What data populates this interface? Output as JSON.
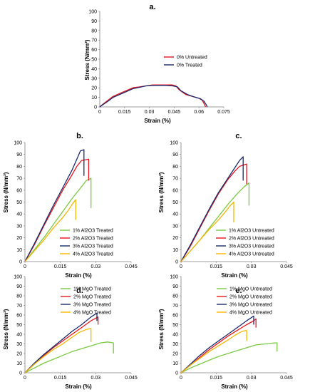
{
  "chart_data": [
    {
      "panel_label": "a.",
      "type": "line",
      "xlabel": "Strain (%)",
      "ylabel": "Stress (N/mm²)",
      "xlim": [
        0,
        0.075
      ],
      "ylim": [
        0,
        100
      ],
      "xticks": [
        "0",
        "0.015",
        "0.03",
        "0.045",
        "0.06",
        "0.075"
      ],
      "yticks": [
        "0",
        "10",
        "20",
        "30",
        "40",
        "50",
        "60",
        "70",
        "80",
        "90",
        "100"
      ],
      "legend_position": "center-right",
      "series": [
        {
          "name": "0% Untreated",
          "color": "#e8141c",
          "points": [
            [
              0,
              0
            ],
            [
              0.002,
              3
            ],
            [
              0.005,
              7
            ],
            [
              0.008,
              11
            ],
            [
              0.012,
              14
            ],
            [
              0.016,
              17
            ],
            [
              0.02,
              20
            ],
            [
              0.024,
              21
            ],
            [
              0.028,
              22
            ],
            [
              0.032,
              23
            ],
            [
              0.036,
              23
            ],
            [
              0.04,
              23
            ],
            [
              0.044,
              23
            ],
            [
              0.046,
              22
            ],
            [
              0.048,
              18
            ],
            [
              0.052,
              13
            ],
            [
              0.056,
              11
            ],
            [
              0.06,
              9
            ],
            [
              0.062,
              7
            ],
            [
              0.0635,
              2
            ],
            [
              0.064,
              0
            ]
          ]
        },
        {
          "name": "0% Treated",
          "color": "#1a2a6c",
          "points": [
            [
              0,
              0
            ],
            [
              0.002,
              2.5
            ],
            [
              0.005,
              6
            ],
            [
              0.008,
              10
            ],
            [
              0.012,
              13
            ],
            [
              0.016,
              16
            ],
            [
              0.02,
              19
            ],
            [
              0.024,
              20.5
            ],
            [
              0.028,
              22
            ],
            [
              0.032,
              22.5
            ],
            [
              0.036,
              22.5
            ],
            [
              0.04,
              22.5
            ],
            [
              0.044,
              22
            ],
            [
              0.047,
              21
            ],
            [
              0.049,
              17
            ],
            [
              0.053,
              13
            ],
            [
              0.057,
              10.5
            ],
            [
              0.061,
              8.5
            ],
            [
              0.063,
              6
            ],
            [
              0.0645,
              2
            ],
            [
              0.065,
              0
            ]
          ]
        }
      ]
    },
    {
      "panel_label": "b.",
      "type": "line",
      "xlabel": "Strain (%)",
      "ylabel": "Stress (N/mm²)",
      "xlim": [
        0,
        0.045
      ],
      "ylim": [
        0,
        100
      ],
      "xticks": [
        "0",
        "0.015",
        "0.03",
        "0.045"
      ],
      "yticks": [
        "0",
        "10",
        "20",
        "30",
        "40",
        "50",
        "60",
        "70",
        "80",
        "90",
        "100"
      ],
      "legend_position": "bottom-right",
      "series": [
        {
          "name": "1% Al2O3 Treated",
          "color": "#7ac943",
          "points": [
            [
              0,
              0
            ],
            [
              0.004,
              10
            ],
            [
              0.008,
              20
            ],
            [
              0.012,
              31
            ],
            [
              0.016,
              42
            ],
            [
              0.02,
              53
            ],
            [
              0.024,
              63
            ],
            [
              0.026,
              68
            ],
            [
              0.028,
              70
            ],
            [
              0.028,
              45
            ]
          ]
        },
        {
          "name": "2% Al2O3 Treated",
          "color": "#e8141c",
          "points": [
            [
              0,
              0
            ],
            [
              0.004,
              14
            ],
            [
              0.008,
              30
            ],
            [
              0.012,
              45
            ],
            [
              0.016,
              60
            ],
            [
              0.02,
              73
            ],
            [
              0.022,
              80
            ],
            [
              0.024,
              85
            ],
            [
              0.027,
              86
            ],
            [
              0.027,
              68
            ]
          ]
        },
        {
          "name": "3% Al2O3 Treated",
          "color": "#1a2a6c",
          "points": [
            [
              0,
              0
            ],
            [
              0.004,
              15
            ],
            [
              0.008,
              31
            ],
            [
              0.012,
              47
            ],
            [
              0.016,
              62
            ],
            [
              0.02,
              77
            ],
            [
              0.022,
              86
            ],
            [
              0.0235,
              93
            ],
            [
              0.025,
              94
            ],
            [
              0.025,
              72
            ]
          ]
        },
        {
          "name": "4% Al2O3 Treated",
          "color": "#f7b500",
          "points": [
            [
              0,
              0
            ],
            [
              0.004,
              9
            ],
            [
              0.008,
              18
            ],
            [
              0.012,
              28
            ],
            [
              0.016,
              37
            ],
            [
              0.018,
              42
            ],
            [
              0.02,
              48
            ],
            [
              0.0215,
              52
            ],
            [
              0.0215,
              35
            ]
          ]
        }
      ]
    },
    {
      "panel_label": "c.",
      "type": "line",
      "xlabel": "Strain (%)",
      "ylabel": "Stress (N/mm²)",
      "xlim": [
        0,
        0.045
      ],
      "ylim": [
        0,
        100
      ],
      "xticks": [
        "0",
        "0.015",
        "0.03",
        "0.045"
      ],
      "yticks": [
        "0",
        "10",
        "20",
        "30",
        "40",
        "50",
        "60",
        "70",
        "80",
        "90",
        "100"
      ],
      "legend_position": "bottom-right",
      "series": [
        {
          "name": "1% Al2O3 Untreated",
          "color": "#7ac943",
          "points": [
            [
              0,
              0
            ],
            [
              0.004,
              9
            ],
            [
              0.008,
              18
            ],
            [
              0.012,
              28
            ],
            [
              0.016,
              38
            ],
            [
              0.02,
              48
            ],
            [
              0.024,
              57
            ],
            [
              0.027,
              63
            ],
            [
              0.029,
              66
            ],
            [
              0.029,
              47
            ]
          ]
        },
        {
          "name": "2% Al2O3 Untreated",
          "color": "#e8141c",
          "points": [
            [
              0,
              0
            ],
            [
              0.004,
              13
            ],
            [
              0.008,
              28
            ],
            [
              0.012,
              43
            ],
            [
              0.016,
              57
            ],
            [
              0.02,
              69
            ],
            [
              0.023,
              76
            ],
            [
              0.025,
              80
            ],
            [
              0.028,
              82
            ],
            [
              0.028,
              65
            ]
          ]
        },
        {
          "name": "3% Al2O3 Untreated",
          "color": "#1a2a6c",
          "points": [
            [
              0,
              0
            ],
            [
              0.004,
              14
            ],
            [
              0.008,
              29
            ],
            [
              0.012,
              44
            ],
            [
              0.016,
              58
            ],
            [
              0.02,
              70
            ],
            [
              0.023,
              79
            ],
            [
              0.025,
              85
            ],
            [
              0.0265,
              88
            ],
            [
              0.0265,
              68
            ]
          ]
        },
        {
          "name": "4% Al2O3 Untreated",
          "color": "#f7b500",
          "points": [
            [
              0,
              0
            ],
            [
              0.004,
              9
            ],
            [
              0.008,
              18
            ],
            [
              0.012,
              27
            ],
            [
              0.016,
              35
            ],
            [
              0.019,
              42
            ],
            [
              0.021,
              47
            ],
            [
              0.0225,
              50
            ],
            [
              0.0225,
              33
            ]
          ]
        }
      ]
    },
    {
      "panel_label": "d.",
      "type": "line",
      "xlabel": "Strain (%)",
      "ylabel": "Stress (N/mm²)",
      "xlim": [
        0,
        0.045
      ],
      "ylim": [
        0,
        100
      ],
      "xticks": [
        "0",
        "0.015",
        "0.03",
        "0.045"
      ],
      "yticks": [
        "0",
        "10",
        "20",
        "30",
        "40",
        "50",
        "60",
        "70",
        "80",
        "90",
        "100"
      ],
      "legend_position": "top-right",
      "series": [
        {
          "name": "1% MgO Treated",
          "color": "#7ac943",
          "points": [
            [
              0,
              0
            ],
            [
              0.004,
              5
            ],
            [
              0.008,
              10
            ],
            [
              0.012,
              14
            ],
            [
              0.016,
              18
            ],
            [
              0.02,
              22
            ],
            [
              0.024,
              25
            ],
            [
              0.028,
              28
            ],
            [
              0.032,
              31
            ],
            [
              0.035,
              32
            ],
            [
              0.0375,
              31
            ],
            [
              0.0375,
              20
            ]
          ]
        },
        {
          "name": "2% MgO Treated",
          "color": "#e8141c",
          "points": [
            [
              0,
              0
            ],
            [
              0.004,
              9
            ],
            [
              0.008,
              18
            ],
            [
              0.012,
              26
            ],
            [
              0.016,
              33
            ],
            [
              0.02,
              40
            ],
            [
              0.024,
              47
            ],
            [
              0.028,
              54
            ],
            [
              0.031,
              58
            ],
            [
              0.031,
              50
            ]
          ]
        },
        {
          "name": "3% MgO Treated",
          "color": "#1a2a6c",
          "points": [
            [
              0,
              0
            ],
            [
              0.004,
              10
            ],
            [
              0.008,
              19
            ],
            [
              0.012,
              27
            ],
            [
              0.016,
              35
            ],
            [
              0.02,
              43
            ],
            [
              0.024,
              50
            ],
            [
              0.028,
              58
            ],
            [
              0.0305,
              62
            ],
            [
              0.0305,
              54
            ]
          ]
        },
        {
          "name": "4% MgO Treated",
          "color": "#f7b500",
          "points": [
            [
              0,
              0
            ],
            [
              0.004,
              9
            ],
            [
              0.008,
              17
            ],
            [
              0.012,
              24
            ],
            [
              0.016,
              30
            ],
            [
              0.02,
              37
            ],
            [
              0.023,
              42
            ],
            [
              0.026,
              45
            ],
            [
              0.028,
              46
            ],
            [
              0.028,
              32
            ]
          ]
        }
      ]
    },
    {
      "panel_label": "e.",
      "type": "line",
      "xlabel": "Strain (%)",
      "ylabel": "Stress (N/mm²)",
      "xlim": [
        0,
        0.045
      ],
      "ylim": [
        0,
        100
      ],
      "xticks": [
        "0",
        "0.015",
        "0.03",
        "0.045"
      ],
      "yticks": [
        "0",
        "10",
        "20",
        "30",
        "40",
        "50",
        "60",
        "70",
        "80",
        "90",
        "100"
      ],
      "legend_position": "top-right",
      "series": [
        {
          "name": "1% MgO Untreated",
          "color": "#7ac943",
          "points": [
            [
              0,
              0
            ],
            [
              0.004,
              5
            ],
            [
              0.008,
              9
            ],
            [
              0.012,
              13
            ],
            [
              0.016,
              17
            ],
            [
              0.02,
              20
            ],
            [
              0.024,
              23
            ],
            [
              0.028,
              26
            ],
            [
              0.032,
              29
            ],
            [
              0.036,
              30
            ],
            [
              0.04,
              31
            ],
            [
              0.041,
              31
            ],
            [
              0.041,
              22
            ]
          ]
        },
        {
          "name": "2% MgO Untreated",
          "color": "#e8141c",
          "points": [
            [
              0,
              0
            ],
            [
              0.004,
              8
            ],
            [
              0.008,
              16
            ],
            [
              0.012,
              24
            ],
            [
              0.016,
              31
            ],
            [
              0.02,
              38
            ],
            [
              0.024,
              44
            ],
            [
              0.028,
              50
            ],
            [
              0.031,
              54
            ],
            [
              0.032,
              56
            ],
            [
              0.032,
              47
            ]
          ]
        },
        {
          "name": "3% MgO Untreated",
          "color": "#1a2a6c",
          "points": [
            [
              0,
              0
            ],
            [
              0.004,
              9
            ],
            [
              0.008,
              18
            ],
            [
              0.012,
              26
            ],
            [
              0.016,
              33
            ],
            [
              0.02,
              40
            ],
            [
              0.024,
              47
            ],
            [
              0.028,
              54
            ],
            [
              0.031,
              59
            ],
            [
              0.031,
              50
            ]
          ]
        },
        {
          "name": "4% MgO Untreated",
          "color": "#f7b500",
          "points": [
            [
              0,
              0
            ],
            [
              0.004,
              8
            ],
            [
              0.008,
              15
            ],
            [
              0.012,
              22
            ],
            [
              0.016,
              28
            ],
            [
              0.02,
              34
            ],
            [
              0.023,
              39
            ],
            [
              0.026,
              43
            ],
            [
              0.028,
              44
            ],
            [
              0.028,
              33
            ]
          ]
        }
      ]
    }
  ]
}
